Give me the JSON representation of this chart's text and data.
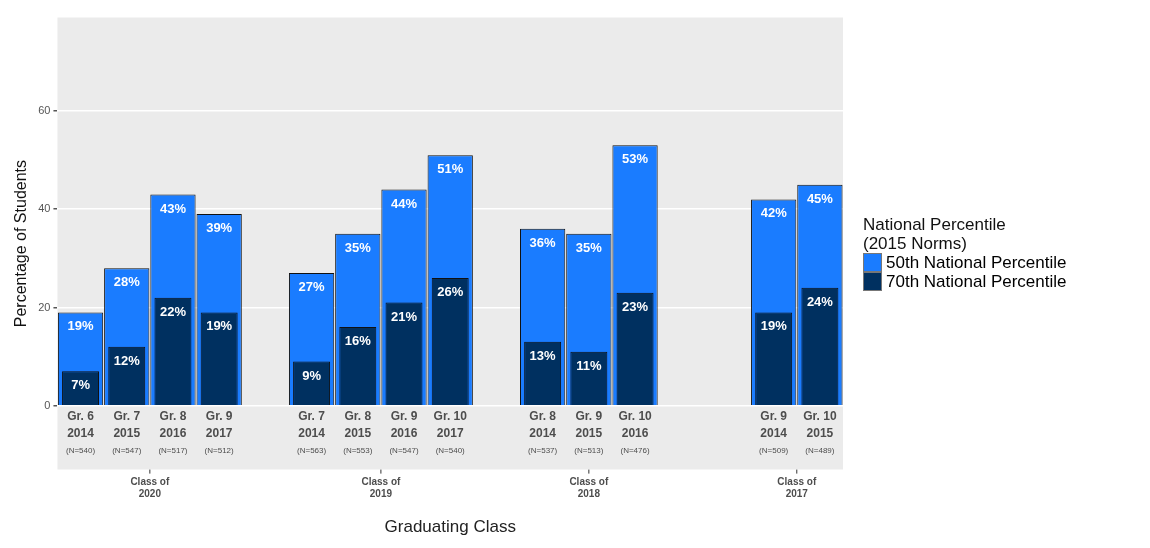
{
  "chart_data": {
    "type": "bar",
    "xlabel": "Graduating Class",
    "ylabel": "Percentage of Students",
    "legend_title": "National Percentile\n(2015 Norms)",
    "categories": [
      "Gr. 6\n2014\n(N=540)",
      "Gr. 7\n2015\n(N=547)",
      "Gr. 8\n2016\n(N=517)",
      "Gr. 9\n2017\n(N=512)",
      null,
      "Gr. 7\n2014\n(N=563)",
      "Gr. 8\n2015\n(N=553)",
      "Gr. 9\n2016\n(N=547)",
      "Gr. 10\n2017\n(N=540)",
      null,
      "Gr. 8\n2014\n(N=537)",
      "Gr. 9\n2015\n(N=513)",
      "Gr. 10\n2016\n(N=476)",
      null,
      null,
      "Gr. 9\n2014\n(N=509)",
      "Gr. 10\n2015\n(N=489)"
    ],
    "series": [
      {
        "name": "50th National Percentile",
        "color": "#1a7cff",
        "values": [
          19,
          28,
          43,
          39,
          null,
          27,
          35,
          44,
          51,
          null,
          36,
          35,
          53,
          null,
          null,
          42,
          45
        ],
        "value_labels": [
          "19%",
          "28%",
          "43%",
          "39%",
          null,
          "27%",
          "35%",
          "44%",
          "51%",
          null,
          "36%",
          "35%",
          "53%",
          null,
          null,
          "42%",
          "45%"
        ]
      },
      {
        "name": "70th National Percentile",
        "color": "#003060",
        "values": [
          7,
          12,
          22,
          19,
          null,
          9,
          16,
          21,
          26,
          null,
          13,
          11,
          23,
          null,
          null,
          19,
          24
        ],
        "value_labels": [
          "7%",
          "12%",
          "22%",
          "19%",
          null,
          "9%",
          "16%",
          "21%",
          "26%",
          null,
          "13%",
          "11%",
          "23%",
          null,
          null,
          "19%",
          "24%"
        ]
      }
    ],
    "annotations": [
      "Class of\n2020",
      "Class of\n2019",
      "Class of\n2018",
      "Class of\n2017"
    ],
    "ylim": [
      -13,
      79
    ],
    "yticks": [
      0,
      20,
      40,
      60
    ],
    "grid": "y",
    "legend": "right"
  }
}
